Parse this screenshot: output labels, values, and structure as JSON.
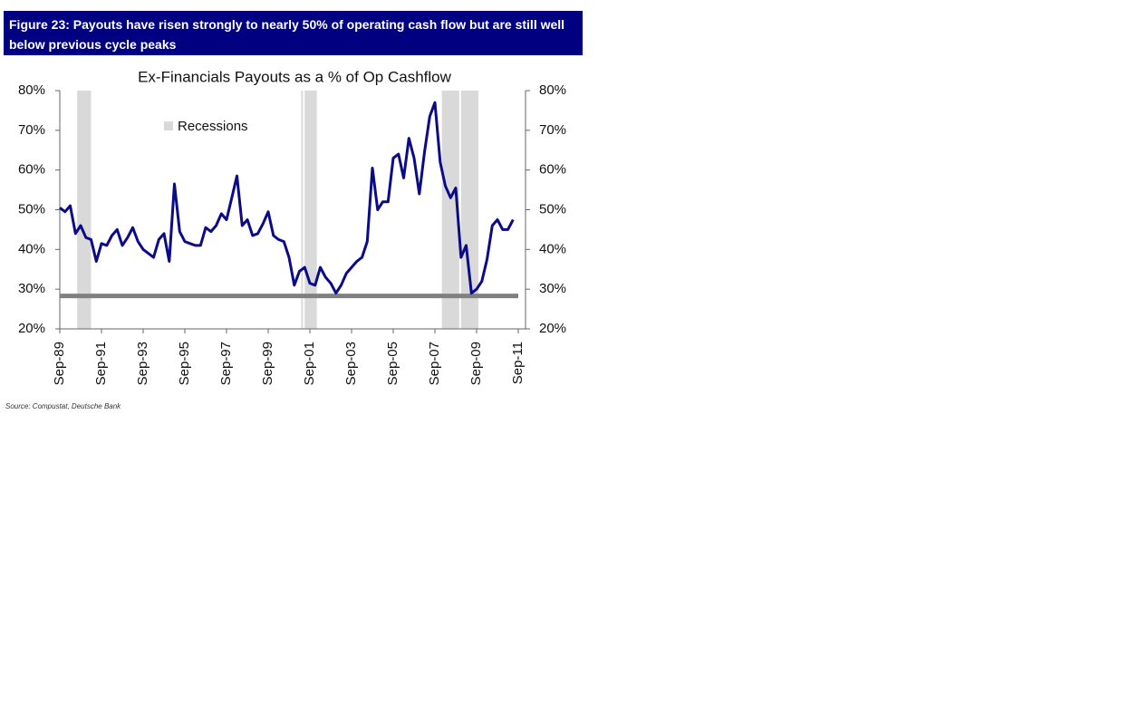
{
  "chart_data": {
    "type": "line",
    "figure_title": "Figure 23: Payouts have risen strongly to nearly 50% of operating cash flow but are still well below previous cycle peaks",
    "title": "Ex-Financials Payouts as a % of Op Cashflow",
    "source": "Source: Compustat, Deutsche Bank",
    "color": "#0b0b8a",
    "x": [
      "1989-09",
      "1989-12",
      "1990-03",
      "1990-06",
      "1990-09",
      "1990-12",
      "1991-03",
      "1991-06",
      "1991-09",
      "1991-12",
      "1992-03",
      "1992-06",
      "1992-09",
      "1992-12",
      "1993-03",
      "1993-06",
      "1993-09",
      "1993-12",
      "1994-03",
      "1994-06",
      "1994-09",
      "1994-12",
      "1995-03",
      "1995-06",
      "1995-09",
      "1995-12",
      "1996-03",
      "1996-06",
      "1996-09",
      "1996-12",
      "1997-03",
      "1997-06",
      "1997-09",
      "1997-12",
      "1998-03",
      "1998-06",
      "1998-09",
      "1998-12",
      "1999-03",
      "1999-06",
      "1999-09",
      "1999-12",
      "2000-03",
      "2000-06",
      "2000-09",
      "2000-12",
      "2001-03",
      "2001-06",
      "2001-09",
      "2001-12",
      "2002-03",
      "2002-06",
      "2002-09",
      "2002-12",
      "2003-03",
      "2003-06",
      "2003-09",
      "2003-12",
      "2004-03",
      "2004-06",
      "2004-09",
      "2004-12",
      "2005-03",
      "2005-06",
      "2005-09",
      "2005-12",
      "2006-03",
      "2006-06",
      "2006-09",
      "2006-12",
      "2007-03",
      "2007-06",
      "2007-09",
      "2007-12",
      "2008-03",
      "2008-06",
      "2008-09",
      "2008-12",
      "2009-03",
      "2009-06",
      "2009-09",
      "2009-12",
      "2010-03",
      "2010-06",
      "2010-09",
      "2010-12",
      "2011-03",
      "2011-06"
    ],
    "values": [
      50.5,
      49.5,
      51,
      44,
      46,
      43,
      42.5,
      37,
      41.5,
      41,
      43.5,
      45,
      41,
      43,
      45.5,
      42,
      40,
      39,
      38,
      42.5,
      44,
      37,
      56.5,
      44.5,
      42,
      41.5,
      41,
      41,
      45.5,
      44.5,
      46,
      49,
      47.5,
      53,
      58.5,
      46,
      47.5,
      43.5,
      44,
      46.5,
      49.5,
      43.5,
      42.5,
      42,
      38,
      31,
      34.5,
      35.5,
      31.5,
      31,
      35.5,
      33,
      31.5,
      29,
      31,
      34,
      35.5,
      37,
      38,
      42,
      60.5,
      50,
      52,
      52,
      63,
      64,
      58,
      68,
      63,
      54,
      64.5,
      73.5,
      77,
      62,
      56,
      53,
      55.5,
      38,
      41,
      29,
      30,
      32,
      37.5,
      46,
      47.5,
      45,
      45,
      47.5
    ],
    "recessions_label": "Recessions",
    "recession_color": "#d9d9d9",
    "recessions": [
      {
        "start": "1990-07",
        "end": "1991-03"
      },
      {
        "start": "2001-04",
        "end": "2001-05"
      },
      {
        "start": "2001-06",
        "end": "2002-01"
      },
      {
        "start": "2008-01",
        "end": "2008-11"
      },
      {
        "start": "2008-12",
        "end": "2009-10"
      }
    ],
    "reference_line": 28.3,
    "reference_color": "#808080",
    "xlim": [
      "1989-09",
      "2011-09"
    ],
    "xticks": [
      {
        "value": "1989-09",
        "label": "Sep-89"
      },
      {
        "value": "1991-09",
        "label": "Sep-91"
      },
      {
        "value": "1993-09",
        "label": "Sep-93"
      },
      {
        "value": "1995-09",
        "label": "Sep-95"
      },
      {
        "value": "1997-09",
        "label": "Sep-97"
      },
      {
        "value": "1999-09",
        "label": "Sep-99"
      },
      {
        "value": "2001-09",
        "label": "Sep-01"
      },
      {
        "value": "2003-09",
        "label": "Sep-03"
      },
      {
        "value": "2005-09",
        "label": "Sep-05"
      },
      {
        "value": "2007-09",
        "label": "Sep-07"
      },
      {
        "value": "2009-09",
        "label": "Sep-09"
      },
      {
        "value": "2011-09",
        "label": "Sep-11"
      }
    ],
    "ylim": [
      20,
      80
    ],
    "yticks": [
      {
        "value": 20,
        "label": "20%"
      },
      {
        "value": 30,
        "label": "30%"
      },
      {
        "value": 40,
        "label": "40%"
      },
      {
        "value": 50,
        "label": "50%"
      },
      {
        "value": 60,
        "label": "60%"
      },
      {
        "value": 70,
        "label": "70%"
      },
      {
        "value": 80,
        "label": "80%"
      }
    ],
    "y2lim": [
      20,
      80
    ],
    "y2ticks": [
      {
        "value": 20,
        "label": "20%"
      },
      {
        "value": 30,
        "label": "30%"
      },
      {
        "value": 40,
        "label": "40%"
      },
      {
        "value": 50,
        "label": "50%"
      },
      {
        "value": 60,
        "label": "60%"
      },
      {
        "value": 70,
        "label": "70%"
      },
      {
        "value": 80,
        "label": "80%"
      }
    ]
  }
}
